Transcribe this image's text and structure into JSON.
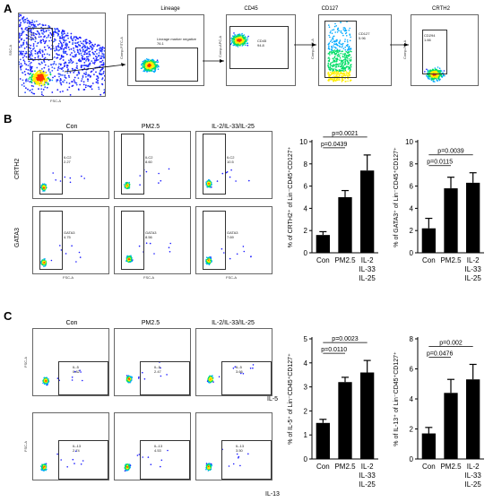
{
  "panels": {
    "a": "A",
    "b": "B",
    "c": "C"
  },
  "panelA": {
    "titles": [
      "Lineage",
      "CD45",
      "CD127",
      "CRTH2"
    ],
    "gates": [
      {
        "name": "Q1",
        "value": "10.7"
      },
      {
        "name": "Lineage marker negative",
        "value": "76.1"
      },
      {
        "name": "CD45",
        "value": "94.8"
      },
      {
        "name": "CD127",
        "value": "5.96"
      },
      {
        "name": "CD294",
        "value": "1.66"
      }
    ],
    "yaxes": [
      "SSC-A",
      "Comp-FITC-A",
      "Comp-APC-A",
      "Comp-FL2-A",
      "Comp-PE-A"
    ],
    "xaxis": "FSC-A"
  },
  "panelB": {
    "columns": [
      "Con",
      "PM2.5",
      "IL-2/IL-33/IL-25"
    ],
    "rows": [
      "CRTH2",
      "GATA3"
    ],
    "gate_label_row1": "ILC2",
    "gate_label_row2": "GATA3",
    "values_row1": [
      "2.27",
      "8.60",
      "10.5"
    ],
    "values_row2": [
      "4.75",
      "8.56",
      "7.69"
    ],
    "xaxis": "FSC-A"
  },
  "panelC": {
    "columns": [
      "Con",
      "PM2.5",
      "IL-2/IL-33/IL-25"
    ],
    "rows": [
      "IL-5",
      "IL-13"
    ],
    "values_row1": [
      "0.82",
      "2.47",
      "3.66"
    ],
    "values_row2": [
      "2.74",
      "4.53",
      "3.50"
    ],
    "yaxis": "FSC-A"
  },
  "chart_data": [
    {
      "type": "bar",
      "id": "b1",
      "categories": [
        "Con",
        "PM2.5",
        "IL-2\nIL-33\nIL-25"
      ],
      "values": [
        1.6,
        5.0,
        7.4
      ],
      "errors": [
        0.3,
        0.6,
        1.4
      ],
      "ylabel": "% of CRTH2⁺ of Lin⁻CD45⁺CD127⁺",
      "ylim": [
        0,
        10
      ],
      "yticks": [
        0,
        2,
        4,
        6,
        8,
        10
      ],
      "pvalues": [
        {
          "from": 0,
          "to": 1,
          "text": "p=0.0439"
        },
        {
          "from": 0,
          "to": 2,
          "text": "p=0.0021"
        }
      ]
    },
    {
      "type": "bar",
      "id": "b2",
      "categories": [
        "Con",
        "PM2.5",
        "IL-2\nIL-33\nIL-25"
      ],
      "values": [
        2.2,
        5.8,
        6.3
      ],
      "errors": [
        0.9,
        1.0,
        0.9
      ],
      "ylabel": "% of GATA3⁺ of Lin⁻CD45⁺CD127⁺",
      "ylim": [
        0,
        10
      ],
      "yticks": [
        0,
        2,
        4,
        6,
        8,
        10
      ],
      "pvalues": [
        {
          "from": 0,
          "to": 1,
          "text": "p=0.0115"
        },
        {
          "from": 0,
          "to": 2,
          "text": "p=0.0039"
        }
      ]
    },
    {
      "type": "bar",
      "id": "c1",
      "categories": [
        "Con",
        "PM2.5",
        "IL-2\nIL-33\nIL-25"
      ],
      "values": [
        1.5,
        3.2,
        3.6
      ],
      "errors": [
        0.15,
        0.2,
        0.5
      ],
      "ylabel": "% of IL-5⁺ of Lin⁻CD45⁺CD127⁺",
      "ylim": [
        0,
        5
      ],
      "yticks": [
        0,
        1,
        2,
        3,
        4,
        5
      ],
      "pvalues": [
        {
          "from": 0,
          "to": 1,
          "text": "p=0.0110"
        },
        {
          "from": 0,
          "to": 2,
          "text": "p=0.0023"
        }
      ]
    },
    {
      "type": "bar",
      "id": "c2",
      "categories": [
        "Con",
        "PM2.5",
        "IL-2\nIL-33\nIL-25"
      ],
      "values": [
        1.7,
        4.4,
        5.3
      ],
      "errors": [
        0.4,
        0.9,
        1.0
      ],
      "ylabel": "% of IL-13⁺ of Lin⁻CD45⁺CD127⁺",
      "ylim": [
        0,
        8
      ],
      "yticks": [
        0,
        2,
        4,
        6,
        8
      ],
      "pvalues": [
        {
          "from": 0,
          "to": 1,
          "text": "p=0.0476"
        },
        {
          "from": 0,
          "to": 2,
          "text": "p=0.002"
        }
      ]
    }
  ]
}
